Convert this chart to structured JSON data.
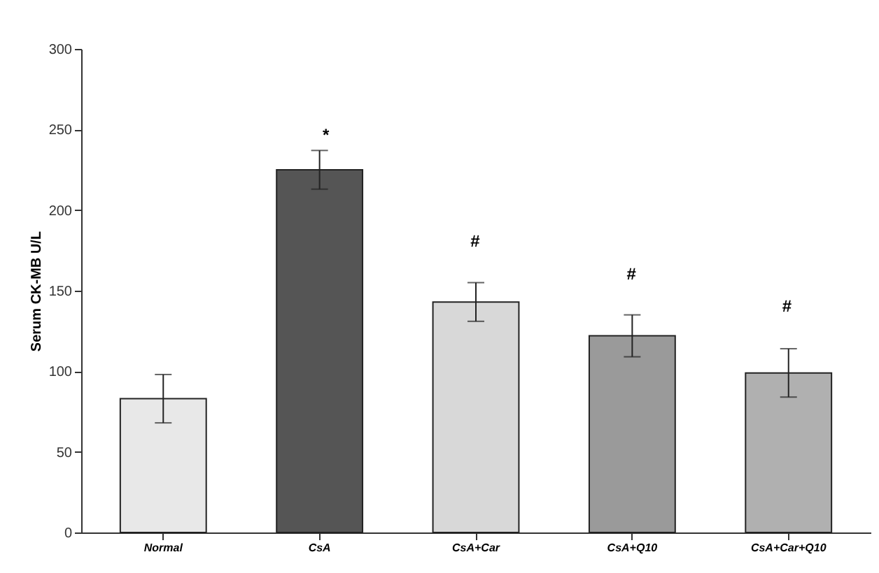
{
  "chart_data": {
    "type": "bar",
    "ylabel": "Serum CK-MB U/L",
    "categories": [
      "Normal",
      "CsA",
      "CsA+Car",
      "CsA+Q10",
      "CsA+Car+Q10"
    ],
    "values": [
      83,
      225,
      143,
      122,
      99
    ],
    "errors": [
      15,
      12,
      12,
      13,
      15
    ],
    "colors": [
      "#e8e8e8",
      "#555555",
      "#d8d8d8",
      "#9a9a9a",
      "#b0b0b0"
    ],
    "ylim": [
      0,
      300
    ],
    "yticks": [
      0,
      50,
      100,
      150,
      200,
      250,
      300
    ],
    "grid": false,
    "annotations": [
      "*",
      "#",
      "#",
      "#"
    ]
  }
}
